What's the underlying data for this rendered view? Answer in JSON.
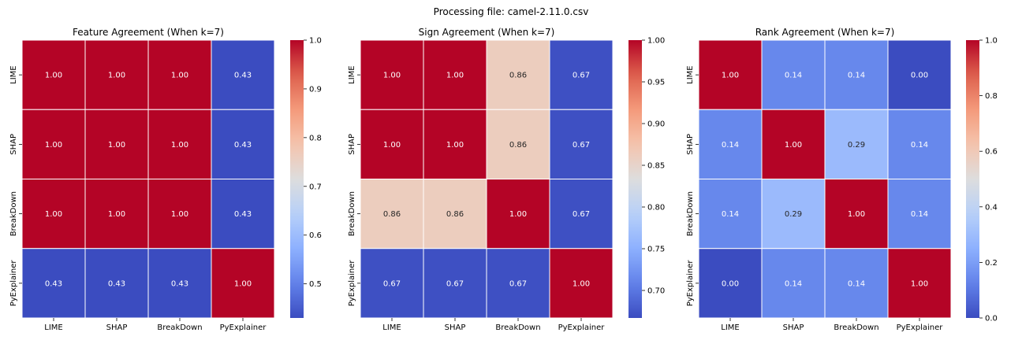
{
  "suptitle": "Processing file: camel-2.11.0.csv",
  "labels": [
    "LIME",
    "SHAP",
    "BreakDown",
    "PyExplainer"
  ],
  "chart_data": [
    {
      "type": "heatmap",
      "title": "Feature Agreement (When k=7)",
      "rows": [
        "LIME",
        "SHAP",
        "BreakDown",
        "PyExplainer"
      ],
      "cols": [
        "LIME",
        "SHAP",
        "BreakDown",
        "PyExplainer"
      ],
      "values": [
        [
          1.0,
          1.0,
          1.0,
          0.43
        ],
        [
          1.0,
          1.0,
          1.0,
          0.43
        ],
        [
          1.0,
          1.0,
          1.0,
          0.43
        ],
        [
          0.43,
          0.43,
          0.43,
          1.0
        ]
      ],
      "vmin": 0.43,
      "vmax": 1.0,
      "colorbar_ticks": [
        0.5,
        0.6,
        0.7,
        0.8,
        0.9,
        1.0
      ],
      "colorbar_tick_labels": [
        "0.5",
        "0.6",
        "0.7",
        "0.8",
        "0.9",
        "1.0"
      ],
      "colormap": "coolwarm"
    },
    {
      "type": "heatmap",
      "title": "Sign Agreement (When k=7)",
      "rows": [
        "LIME",
        "SHAP",
        "BreakDown",
        "PyExplainer"
      ],
      "cols": [
        "LIME",
        "SHAP",
        "BreakDown",
        "PyExplainer"
      ],
      "values": [
        [
          1.0,
          1.0,
          0.86,
          0.67
        ],
        [
          1.0,
          1.0,
          0.86,
          0.67
        ],
        [
          0.86,
          0.86,
          1.0,
          0.67
        ],
        [
          0.67,
          0.67,
          0.67,
          1.0
        ]
      ],
      "vmin": 0.667,
      "vmax": 1.0,
      "colorbar_ticks": [
        0.7,
        0.75,
        0.8,
        0.85,
        0.9,
        0.95,
        1.0
      ],
      "colorbar_tick_labels": [
        "0.70",
        "0.75",
        "0.80",
        "0.85",
        "0.90",
        "0.95",
        "1.00"
      ],
      "colormap": "coolwarm"
    },
    {
      "type": "heatmap",
      "title": "Rank Agreement (When k=7)",
      "rows": [
        "LIME",
        "SHAP",
        "BreakDown",
        "PyExplainer"
      ],
      "cols": [
        "LIME",
        "SHAP",
        "BreakDown",
        "PyExplainer"
      ],
      "values": [
        [
          1.0,
          0.14,
          0.14,
          0.0
        ],
        [
          0.14,
          1.0,
          0.29,
          0.14
        ],
        [
          0.14,
          0.29,
          1.0,
          0.14
        ],
        [
          0.0,
          0.14,
          0.14,
          1.0
        ]
      ],
      "vmin": 0.0,
      "vmax": 1.0,
      "colorbar_ticks": [
        0.0,
        0.2,
        0.4,
        0.6,
        0.8,
        1.0
      ],
      "colorbar_tick_labels": [
        "0.0",
        "0.2",
        "0.4",
        "0.6",
        "0.8",
        "1.0"
      ],
      "colormap": "coolwarm"
    }
  ]
}
